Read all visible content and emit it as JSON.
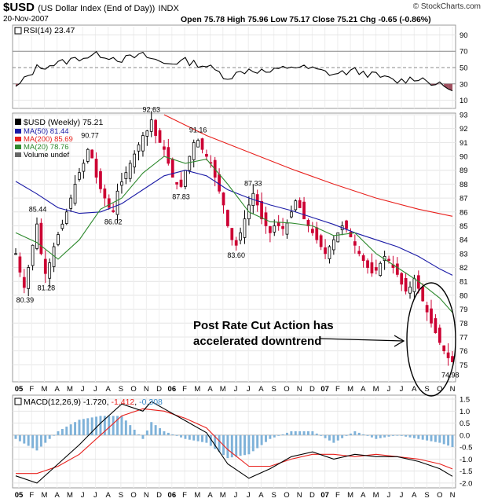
{
  "header": {
    "symbol": "$USD",
    "name": "(US Dollar Index (End of Day))",
    "exchange": "INDX",
    "date": "20-Nov-2007",
    "ohlc": "Open 75.78  High 75.96  Low 75.17  Close 75.21  Chg -0.65 (-0.86%)",
    "logo": "© StockCharts.com"
  },
  "panels": {
    "rsi_label": "RSI(14) 23.47",
    "price_label": "$USD (Weekly) 75.21",
    "ma50_label": "MA(50) 81.44",
    "ma200_label": "MA(200) 85.69",
    "ma20_label": "MA(20) 78.76",
    "volume_label": "Volume undef",
    "macd_label_prefix": "MACD(12,26,9)",
    "macd_v1": "-1.720",
    "macd_v2": "-1.412",
    "macd_v3": "-0.308"
  },
  "annotation": {
    "line1": "Post Rate Cut Action has",
    "line2": "accelerated downtrend"
  },
  "colors": {
    "candle_up": "#000000",
    "candle_down": "#cc0033",
    "ma50": "#1a1aa6",
    "ma200": "#e8201c",
    "ma20": "#2e8a2e",
    "rsi_fill": "#a05060",
    "macd_line": "#000000",
    "signal_line": "#e8201c",
    "histogram": "#7fb2d9"
  },
  "chart_data": {
    "type": "candlestick",
    "title": "$USD (Weekly) 75.21",
    "x_ticks": [
      "05",
      "F",
      "M",
      "A",
      "M",
      "J",
      "J",
      "A",
      "S",
      "O",
      "N",
      "D",
      "06",
      "F",
      "M",
      "A",
      "M",
      "J",
      "J",
      "A",
      "S",
      "O",
      "N",
      "D",
      "07",
      "F",
      "M",
      "A",
      "M",
      "J",
      "J",
      "A",
      "S",
      "O",
      "N"
    ],
    "price_ylim": [
      74,
      93
    ],
    "price_ticks": [
      75,
      76,
      77,
      78,
      79,
      80,
      81,
      82,
      83,
      84,
      85,
      86,
      87,
      88,
      89,
      90,
      91,
      92,
      93
    ],
    "price_points": [
      {
        "t": 0.0,
        "v": 83.0
      },
      {
        "t": 1.5,
        "v": 81.0
      },
      {
        "t": 2.2,
        "v": 80.39
      },
      {
        "t": 3.0,
        "v": 82.0
      },
      {
        "t": 4.0,
        "v": 83.6
      },
      {
        "t": 5.2,
        "v": 85.44
      },
      {
        "t": 6.0,
        "v": 83.0
      },
      {
        "t": 7.2,
        "v": 81.28
      },
      {
        "t": 8.5,
        "v": 83.0
      },
      {
        "t": 9.5,
        "v": 84.0
      },
      {
        "t": 11.5,
        "v": 85.5
      },
      {
        "t": 13.0,
        "v": 87.0
      },
      {
        "t": 14.5,
        "v": 88.5
      },
      {
        "t": 16.0,
        "v": 89.5
      },
      {
        "t": 17.0,
        "v": 90.5
      },
      {
        "t": 17.5,
        "v": 90.77
      },
      {
        "t": 18.5,
        "v": 89.0
      },
      {
        "t": 19.5,
        "v": 88.0
      },
      {
        "t": 21.0,
        "v": 87.0
      },
      {
        "t": 22.5,
        "v": 86.0
      },
      {
        "t": 23.0,
        "v": 86.02
      },
      {
        "t": 24.0,
        "v": 87.5
      },
      {
        "t": 25.5,
        "v": 88.5
      },
      {
        "t": 27.0,
        "v": 89.5
      },
      {
        "t": 28.5,
        "v": 90.5
      },
      {
        "t": 30.0,
        "v": 91.5
      },
      {
        "t": 31.5,
        "v": 92.0
      },
      {
        "t": 32.0,
        "v": 92.63
      },
      {
        "t": 33.0,
        "v": 91.5
      },
      {
        "t": 34.0,
        "v": 91.0
      },
      {
        "t": 35.0,
        "v": 90.5
      },
      {
        "t": 36.0,
        "v": 89.5
      },
      {
        "t": 37.0,
        "v": 88.5
      },
      {
        "t": 38.0,
        "v": 88.0
      },
      {
        "t": 39.0,
        "v": 87.83
      },
      {
        "t": 40.0,
        "v": 89.0
      },
      {
        "t": 41.0,
        "v": 90.0
      },
      {
        "t": 42.0,
        "v": 91.0
      },
      {
        "t": 43.0,
        "v": 91.16
      },
      {
        "t": 44.0,
        "v": 90.5
      },
      {
        "t": 45.0,
        "v": 90.0
      },
      {
        "t": 46.0,
        "v": 89.5
      },
      {
        "t": 47.0,
        "v": 88.5
      },
      {
        "t": 48.0,
        "v": 87.5
      },
      {
        "t": 49.0,
        "v": 86.5
      },
      {
        "t": 50.0,
        "v": 85.0
      },
      {
        "t": 51.0,
        "v": 84.0
      },
      {
        "t": 52.0,
        "v": 83.6
      },
      {
        "t": 53.0,
        "v": 84.5
      },
      {
        "t": 54.0,
        "v": 85.5
      },
      {
        "t": 55.0,
        "v": 86.5
      },
      {
        "t": 56.0,
        "v": 87.33
      },
      {
        "t": 57.0,
        "v": 86.5
      },
      {
        "t": 58.0,
        "v": 85.5
      },
      {
        "t": 59.0,
        "v": 85.0
      },
      {
        "t": 60.0,
        "v": 84.5
      },
      {
        "t": 61.0,
        "v": 85.0
      },
      {
        "t": 62.0,
        "v": 85.0
      },
      {
        "t": 63.0,
        "v": 84.8
      },
      {
        "t": 64.0,
        "v": 85.2
      },
      {
        "t": 65.0,
        "v": 86.0
      },
      {
        "t": 66.0,
        "v": 86.8
      },
      {
        "t": 67.0,
        "v": 86.3
      },
      {
        "t": 68.0,
        "v": 85.5
      },
      {
        "t": 69.0,
        "v": 85.0
      },
      {
        "t": 70.0,
        "v": 84.5
      },
      {
        "t": 71.0,
        "v": 84.0
      },
      {
        "t": 72.0,
        "v": 83.5
      },
      {
        "t": 73.0,
        "v": 83.0
      },
      {
        "t": 74.0,
        "v": 83.5
      },
      {
        "t": 75.0,
        "v": 84.0
      },
      {
        "t": 76.0,
        "v": 84.5
      },
      {
        "t": 77.0,
        "v": 85.0
      },
      {
        "t": 78.0,
        "v": 84.8
      },
      {
        "t": 79.0,
        "v": 84.2
      },
      {
        "t": 80.0,
        "v": 83.6
      },
      {
        "t": 81.0,
        "v": 83.0
      },
      {
        "t": 82.0,
        "v": 82.5
      },
      {
        "t": 83.0,
        "v": 82.0
      },
      {
        "t": 84.0,
        "v": 81.6
      },
      {
        "t": 85.0,
        "v": 81.8
      },
      {
        "t": 86.0,
        "v": 82.3
      },
      {
        "t": 87.0,
        "v": 82.8
      },
      {
        "t": 88.0,
        "v": 82.5
      },
      {
        "t": 89.0,
        "v": 82.0
      },
      {
        "t": 90.0,
        "v": 81.5
      },
      {
        "t": 91.0,
        "v": 80.8
      },
      {
        "t": 92.0,
        "v": 80.3
      },
      {
        "t": 93.0,
        "v": 80.6
      },
      {
        "t": 94.0,
        "v": 81.2
      },
      {
        "t": 95.0,
        "v": 80.5
      },
      {
        "t": 96.0,
        "v": 79.6
      },
      {
        "t": 97.0,
        "v": 78.8
      },
      {
        "t": 98.0,
        "v": 78.0
      },
      {
        "t": 99.0,
        "v": 77.3
      },
      {
        "t": 100.0,
        "v": 76.6
      },
      {
        "t": 101.0,
        "v": 76.0
      },
      {
        "t": 102.0,
        "v": 75.5
      },
      {
        "t": 103.0,
        "v": 75.21
      }
    ],
    "ma200": [
      {
        "t": 35,
        "v": 93.0
      },
      {
        "t": 45,
        "v": 91.5
      },
      {
        "t": 55,
        "v": 90.3
      },
      {
        "t": 65,
        "v": 89.1
      },
      {
        "t": 75,
        "v": 88.0
      },
      {
        "t": 85,
        "v": 87.0
      },
      {
        "t": 95,
        "v": 86.2
      },
      {
        "t": 103,
        "v": 85.69
      }
    ],
    "ma50": [
      {
        "t": 0,
        "v": 88.2
      },
      {
        "t": 5,
        "v": 87.3
      },
      {
        "t": 10,
        "v": 86.3
      },
      {
        "t": 15,
        "v": 85.9
      },
      {
        "t": 20,
        "v": 86.0
      },
      {
        "t": 25,
        "v": 86.6
      },
      {
        "t": 30,
        "v": 87.6
      },
      {
        "t": 35,
        "v": 88.6
      },
      {
        "t": 40,
        "v": 89.0
      },
      {
        "t": 45,
        "v": 88.6
      },
      {
        "t": 50,
        "v": 87.6
      },
      {
        "t": 55,
        "v": 87.0
      },
      {
        "t": 60,
        "v": 86.5
      },
      {
        "t": 65,
        "v": 86.1
      },
      {
        "t": 70,
        "v": 85.6
      },
      {
        "t": 75,
        "v": 85.1
      },
      {
        "t": 80,
        "v": 84.5
      },
      {
        "t": 85,
        "v": 84.0
      },
      {
        "t": 90,
        "v": 83.5
      },
      {
        "t": 95,
        "v": 82.8
      },
      {
        "t": 100,
        "v": 81.9
      },
      {
        "t": 103,
        "v": 81.44
      }
    ],
    "ma20": [
      {
        "t": 0,
        "v": 84.5
      },
      {
        "t": 5,
        "v": 83.8
      },
      {
        "t": 10,
        "v": 82.6
      },
      {
        "t": 15,
        "v": 84.0
      },
      {
        "t": 20,
        "v": 86.2
      },
      {
        "t": 25,
        "v": 87.0
      },
      {
        "t": 30,
        "v": 88.8
      },
      {
        "t": 35,
        "v": 90.0
      },
      {
        "t": 40,
        "v": 89.5
      },
      {
        "t": 45,
        "v": 89.8
      },
      {
        "t": 50,
        "v": 88.0
      },
      {
        "t": 55,
        "v": 86.0
      },
      {
        "t": 60,
        "v": 85.3
      },
      {
        "t": 65,
        "v": 85.2
      },
      {
        "t": 70,
        "v": 85.0
      },
      {
        "t": 75,
        "v": 84.3
      },
      {
        "t": 80,
        "v": 84.5
      },
      {
        "t": 85,
        "v": 83.0
      },
      {
        "t": 90,
        "v": 82.0
      },
      {
        "t": 95,
        "v": 81.0
      },
      {
        "t": 100,
        "v": 79.8
      },
      {
        "t": 103,
        "v": 78.76
      }
    ],
    "price_labels": [
      {
        "text": "80.39",
        "t": 2.2,
        "v": 80.39,
        "pos": "below"
      },
      {
        "text": "85.44",
        "t": 5.2,
        "v": 85.44,
        "pos": "above"
      },
      {
        "text": "81.28",
        "t": 7.2,
        "v": 81.28,
        "pos": "below"
      },
      {
        "text": "90.77",
        "t": 17.5,
        "v": 90.77,
        "pos": "above"
      },
      {
        "text": "86.02",
        "t": 23.0,
        "v": 86.02,
        "pos": "below"
      },
      {
        "text": "92.63",
        "t": 32.0,
        "v": 92.63,
        "pos": "above"
      },
      {
        "text": "87.83",
        "t": 39.0,
        "v": 87.83,
        "pos": "below"
      },
      {
        "text": "91.16",
        "t": 43.0,
        "v": 91.16,
        "pos": "above"
      },
      {
        "text": "83.60",
        "t": 52.0,
        "v": 83.6,
        "pos": "below"
      },
      {
        "text": "87.33",
        "t": 56.0,
        "v": 87.33,
        "pos": "above"
      },
      {
        "text": "74.98",
        "t": 102.5,
        "v": 74.98,
        "pos": "below"
      }
    ],
    "rsi": {
      "ylim": [
        0,
        100
      ],
      "ticks": [
        10,
        30,
        50,
        70,
        90
      ],
      "values": [
        [
          0,
          25
        ],
        [
          5,
          50
        ],
        [
          10,
          55
        ],
        [
          15,
          62
        ],
        [
          20,
          66
        ],
        [
          25,
          60
        ],
        [
          30,
          65
        ],
        [
          35,
          55
        ],
        [
          40,
          58
        ],
        [
          45,
          52
        ],
        [
          50,
          38
        ],
        [
          55,
          48
        ],
        [
          60,
          44
        ],
        [
          65,
          52
        ],
        [
          70,
          48
        ],
        [
          75,
          42
        ],
        [
          80,
          46
        ],
        [
          85,
          40
        ],
        [
          90,
          33
        ],
        [
          95,
          38
        ],
        [
          100,
          28
        ],
        [
          103,
          23.47
        ]
      ]
    },
    "macd": {
      "ylim": [
        -2.2,
        1.6
      ],
      "ticks": [
        1.5,
        1.0,
        0.5,
        0.0,
        -0.5,
        -1.0,
        -1.5,
        -2.0
      ],
      "macd_line": [
        [
          0,
          -1.7
        ],
        [
          5,
          -2.0
        ],
        [
          10,
          -1.2
        ],
        [
          15,
          -0.4
        ],
        [
          20,
          0.5
        ],
        [
          25,
          1.3
        ],
        [
          30,
          1.0
        ],
        [
          32,
          1.4
        ],
        [
          35,
          1.1
        ],
        [
          40,
          0.6
        ],
        [
          45,
          0.1
        ],
        [
          50,
          -1.2
        ],
        [
          55,
          -1.8
        ],
        [
          60,
          -1.4
        ],
        [
          65,
          -0.9
        ],
        [
          70,
          -0.7
        ],
        [
          75,
          -1.0
        ],
        [
          80,
          -0.8
        ],
        [
          85,
          -0.9
        ],
        [
          90,
          -0.9
        ],
        [
          95,
          -1.1
        ],
        [
          100,
          -1.4
        ],
        [
          103,
          -1.72
        ]
      ],
      "signal_line": [
        [
          0,
          -1.6
        ],
        [
          5,
          -1.6
        ],
        [
          10,
          -1.3
        ],
        [
          15,
          -0.8
        ],
        [
          20,
          0.0
        ],
        [
          25,
          0.8
        ],
        [
          30,
          1.1
        ],
        [
          35,
          1.0
        ],
        [
          40,
          0.7
        ],
        [
          45,
          0.3
        ],
        [
          50,
          -0.6
        ],
        [
          55,
          -1.3
        ],
        [
          60,
          -1.3
        ],
        [
          65,
          -1.0
        ],
        [
          70,
          -0.8
        ],
        [
          75,
          -0.8
        ],
        [
          80,
          -0.9
        ],
        [
          85,
          -0.8
        ],
        [
          90,
          -0.9
        ],
        [
          95,
          -1.0
        ],
        [
          100,
          -1.2
        ],
        [
          103,
          -1.41
        ]
      ]
    },
    "weeks": 104
  }
}
